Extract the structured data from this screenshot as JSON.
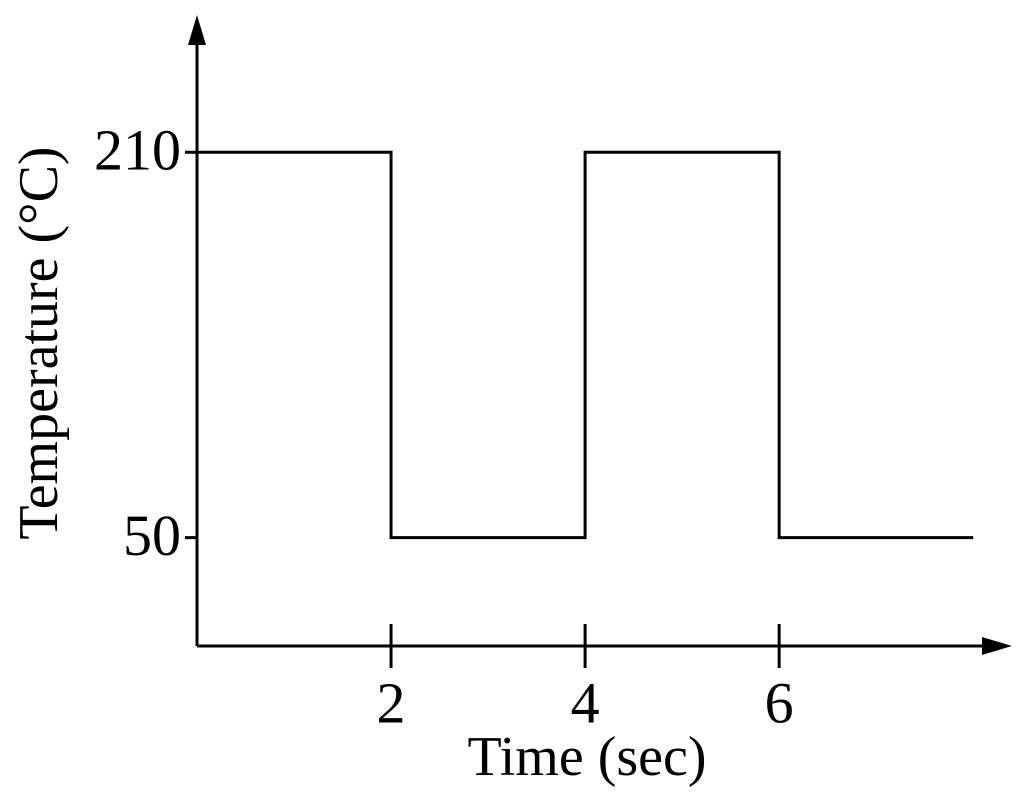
{
  "chart_data": {
    "type": "line",
    "x_label": "Time (sec)",
    "y_label": "Temperature (°C)",
    "x": [
      0,
      2,
      2,
      4,
      4,
      6,
      6,
      8
    ],
    "series": [
      {
        "values": [
          210,
          210,
          50,
          50,
          210,
          210,
          50,
          50
        ],
        "color": "#000000"
      }
    ],
    "xlim": [
      0,
      8.4
    ],
    "ylim": [
      5,
      267
    ],
    "xticks": [
      2,
      4,
      6
    ],
    "yticks": [
      50,
      210
    ],
    "grid": false
  }
}
